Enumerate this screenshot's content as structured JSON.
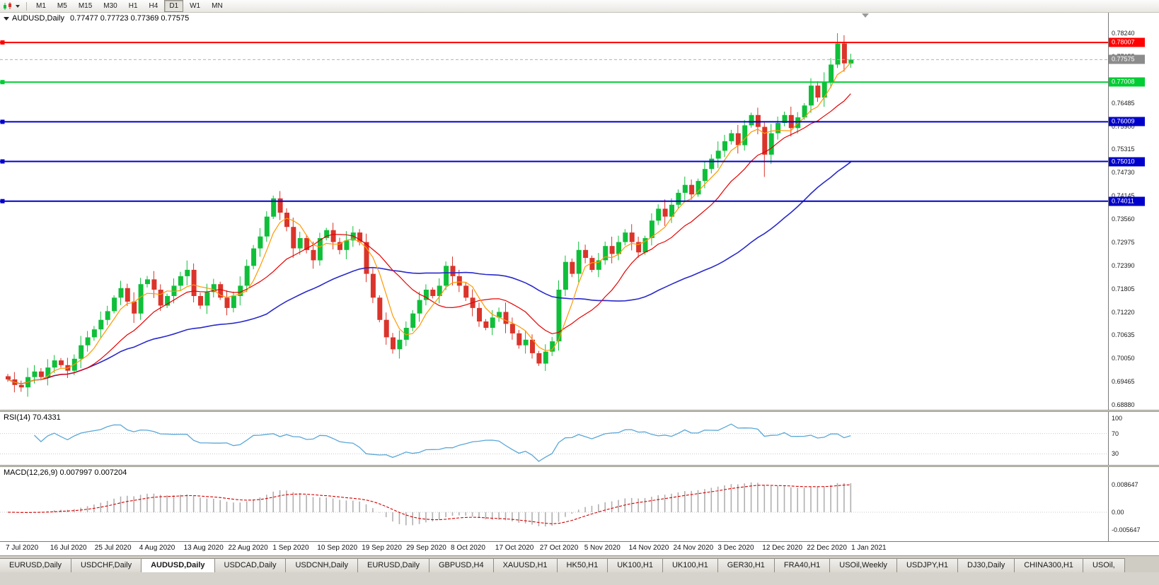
{
  "toolbar": {
    "timeframes": [
      "M1",
      "M5",
      "M15",
      "M30",
      "H1",
      "H4",
      "D1",
      "W1",
      "MN"
    ],
    "active_timeframe": "D1"
  },
  "chart": {
    "title": "AUDUSD,Daily",
    "ohlc": "0.77477 0.77723 0.77369 0.77575",
    "current_price": "0.77575",
    "current_price_color": "#8c8c8c",
    "price_axis_ticks": [
      "0.78240",
      "0.77655",
      "0.77070",
      "0.76485",
      "0.75900",
      "0.75315",
      "0.74730",
      "0.74145",
      "0.73560",
      "0.72975",
      "0.72390",
      "0.71805",
      "0.71220",
      "0.70635",
      "0.70050",
      "0.69465",
      "0.68880"
    ],
    "price_range": {
      "top": 0.7824,
      "bottom": 0.6888
    },
    "hlines": [
      {
        "price": 0.78007,
        "label": "0.78007",
        "color": "#ff0000"
      },
      {
        "price": 0.77008,
        "label": "0.77008",
        "color": "#00cc33"
      },
      {
        "price": 0.76009,
        "label": "0.76009",
        "color": "#0000cc"
      },
      {
        "price": 0.7501,
        "label": "0.75010",
        "color": "#0000cc"
      },
      {
        "price": 0.74011,
        "label": "0.74011",
        "color": "#0000cc"
      }
    ]
  },
  "chart_data": {
    "type": "candlestick",
    "symbol": "AUDUSD",
    "period": "Daily",
    "bull_color": "#0fbf3a",
    "bear_color": "#da342b",
    "first_open": 0.696,
    "closes": [
      0.6952,
      0.6938,
      0.6932,
      0.6958,
      0.6972,
      0.6958,
      0.6982,
      0.7,
      0.6988,
      0.6974,
      0.7004,
      0.7038,
      0.7058,
      0.7078,
      0.7102,
      0.7124,
      0.7158,
      0.7182,
      0.7148,
      0.7118,
      0.7192,
      0.7204,
      0.7178,
      0.7138,
      0.7162,
      0.7188,
      0.7212,
      0.7228,
      0.7162,
      0.7138,
      0.7172,
      0.7192,
      0.7158,
      0.7132,
      0.7162,
      0.7188,
      0.7238,
      0.7282,
      0.7312,
      0.7362,
      0.7408,
      0.7372,
      0.7336,
      0.7282,
      0.7308,
      0.7278,
      0.7252,
      0.7308,
      0.7328,
      0.7298,
      0.7278,
      0.7302,
      0.7322,
      0.7298,
      0.7218,
      0.7158,
      0.7102,
      0.7058,
      0.7028,
      0.7052,
      0.7082,
      0.7118,
      0.7152,
      0.7178,
      0.7162,
      0.7188,
      0.7238,
      0.7212,
      0.7188,
      0.7158,
      0.7132,
      0.7098,
      0.7082,
      0.7108,
      0.7122,
      0.7092,
      0.7068,
      0.7038,
      0.7052,
      0.7018,
      0.6992,
      0.7022,
      0.7048,
      0.7178,
      0.7248,
      0.7218,
      0.7278,
      0.7258,
      0.7228,
      0.7252,
      0.7288,
      0.7268,
      0.7298,
      0.7322,
      0.7298,
      0.7272,
      0.7308,
      0.7352,
      0.7382,
      0.7362,
      0.7392,
      0.7422,
      0.7442,
      0.7418,
      0.7452,
      0.7482,
      0.7508,
      0.7528,
      0.7552,
      0.7572,
      0.7542,
      0.7592,
      0.7618,
      0.7588,
      0.7518,
      0.7572,
      0.7598,
      0.7618,
      0.7585,
      0.7612,
      0.7642,
      0.7692,
      0.7662,
      0.7702,
      0.7745,
      0.7798,
      0.7748,
      0.77575
    ],
    "last_candle": {
      "open": 0.77477,
      "high": 0.77723,
      "low": 0.77369,
      "close": 0.77575
    },
    "wick_overrides": {
      "40": {
        "high": 0.7415
      },
      "114": {
        "low": 0.7462
      },
      "125": {
        "high": 0.7824
      }
    },
    "moving_averages": [
      {
        "name": "fast",
        "period": 5,
        "color": "#ff9900"
      },
      {
        "name": "mid",
        "period": 13,
        "color": "#e60000"
      },
      {
        "name": "slow",
        "period": 40,
        "color": "#2929cc"
      }
    ]
  },
  "rsi": {
    "label": "RSI(14) 70.4331",
    "current": "70.4331",
    "axis": [
      "100",
      "70",
      "30"
    ],
    "levels": [
      70,
      30
    ],
    "line_color": "#5aa7d8"
  },
  "macd": {
    "label": "MACD(12,26,9) 0.007997 0.007204",
    "macd_value": "0.007997",
    "signal_value": "0.007204",
    "axis": [
      "0.008647",
      "0.00",
      "-0.005647"
    ],
    "histogram_color": "#b0b0b0",
    "signal_color": "#d40000"
  },
  "date_axis": {
    "labels": [
      "7 Jul 2020",
      "16 Jul 2020",
      "25 Jul 2020",
      "4 Aug 2020",
      "13 Aug 2020",
      "22 Aug 2020",
      "1 Sep 2020",
      "10 Sep 2020",
      "19 Sep 2020",
      "29 Sep 2020",
      "8 Oct 2020",
      "17 Oct 2020",
      "27 Oct 2020",
      "5 Nov 2020",
      "14 Nov 2020",
      "24 Nov 2020",
      "3 Dec 2020",
      "12 Dec 2020",
      "22 Dec 2020",
      "1 Jan 2021"
    ]
  },
  "tabs": {
    "items": [
      "EURUSD,Daily",
      "USDCHF,Daily",
      "AUDUSD,Daily",
      "USDCAD,Daily",
      "USDCNH,Daily",
      "EURUSD,Daily",
      "GBPUSD,H4",
      "XAUUSD,H1",
      "HK50,H1",
      "UK100,H1",
      "UK100,H1",
      "GER30,H1",
      "FRA40,H1",
      "USOil,Weekly",
      "USDJPY,H1",
      "DJ30,Daily",
      "CHINA300,H1",
      "USOil,"
    ],
    "active_index": 2
  }
}
